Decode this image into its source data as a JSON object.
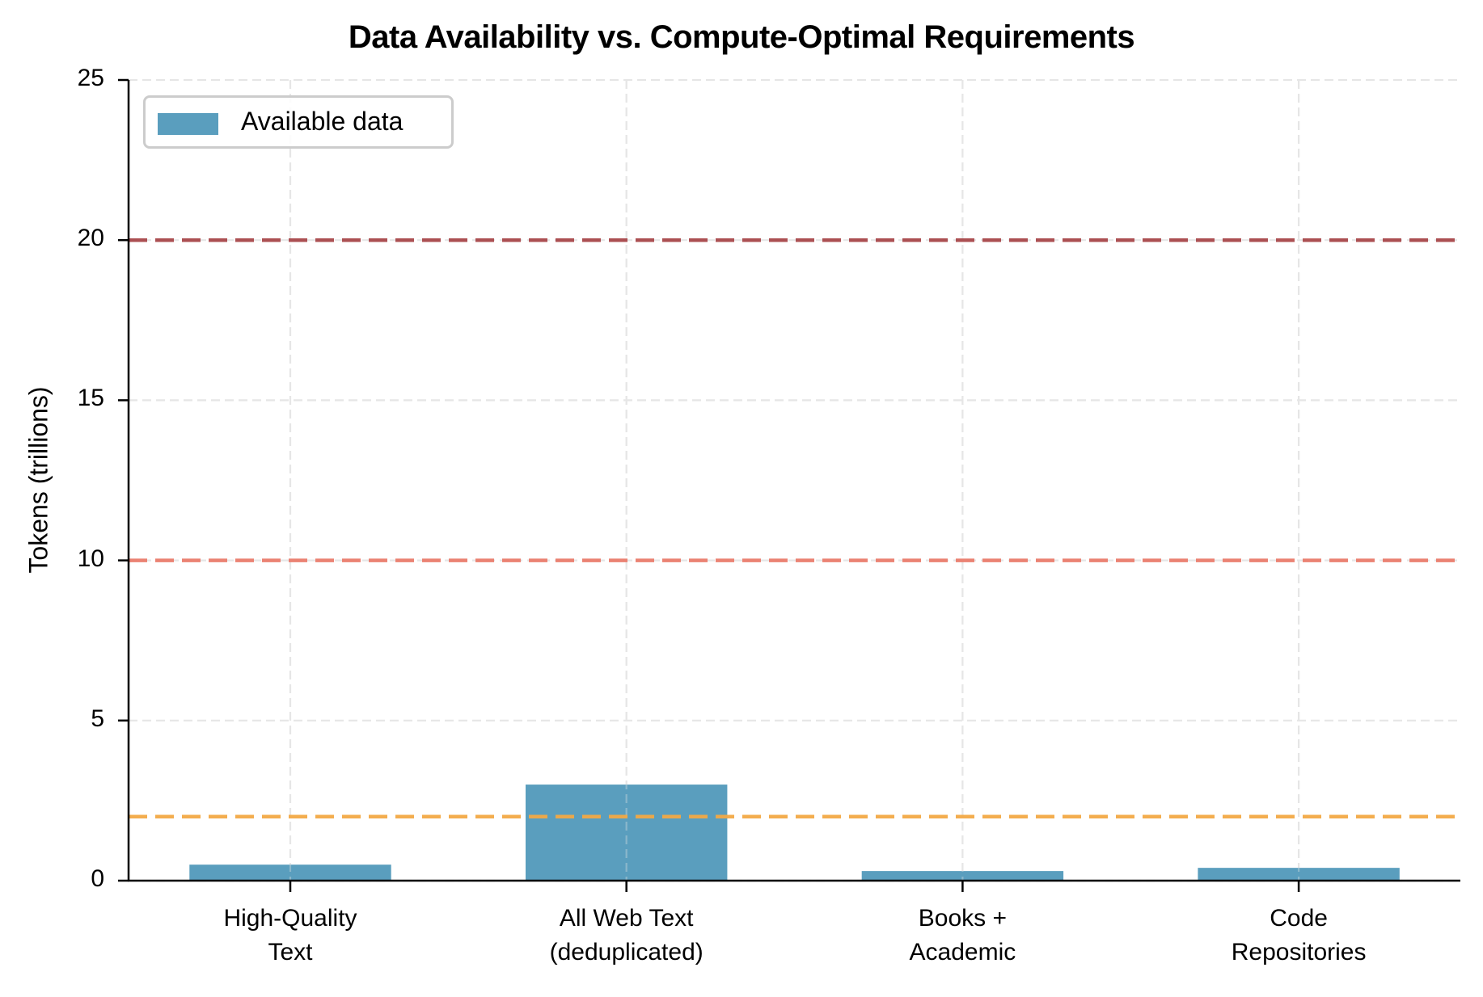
{
  "chart_data": {
    "type": "bar",
    "title": "Data Availability vs. Compute-Optimal Requirements",
    "xlabel": "",
    "ylabel": "Tokens (trillions)",
    "categories": [
      "High-Quality\nText",
      "All Web Text\n(deduplicated)",
      "Books +\nAcademic",
      "Code\nRepositories"
    ],
    "category_lines": [
      [
        "High-Quality",
        "Text"
      ],
      [
        "All Web Text",
        "(deduplicated)"
      ],
      [
        "Books +",
        "Academic"
      ],
      [
        "Code",
        "Repositories"
      ]
    ],
    "series": [
      {
        "name": "Available data",
        "values": [
          0.5,
          3.0,
          0.3,
          0.4
        ],
        "color": "#5a9ebe"
      }
    ],
    "reference_lines": [
      {
        "y": 20,
        "color": "#a8474a",
        "style": "dashed"
      },
      {
        "y": 10,
        "color": "#ea7b6c",
        "style": "dashed"
      },
      {
        "y": 2,
        "color": "#f2a945",
        "style": "dashed"
      }
    ],
    "ylim": [
      0,
      25
    ],
    "yticks": [
      0,
      5,
      10,
      15,
      20,
      25
    ],
    "grid": true,
    "legend_position": "upper left",
    "legend": [
      "Available data"
    ]
  }
}
